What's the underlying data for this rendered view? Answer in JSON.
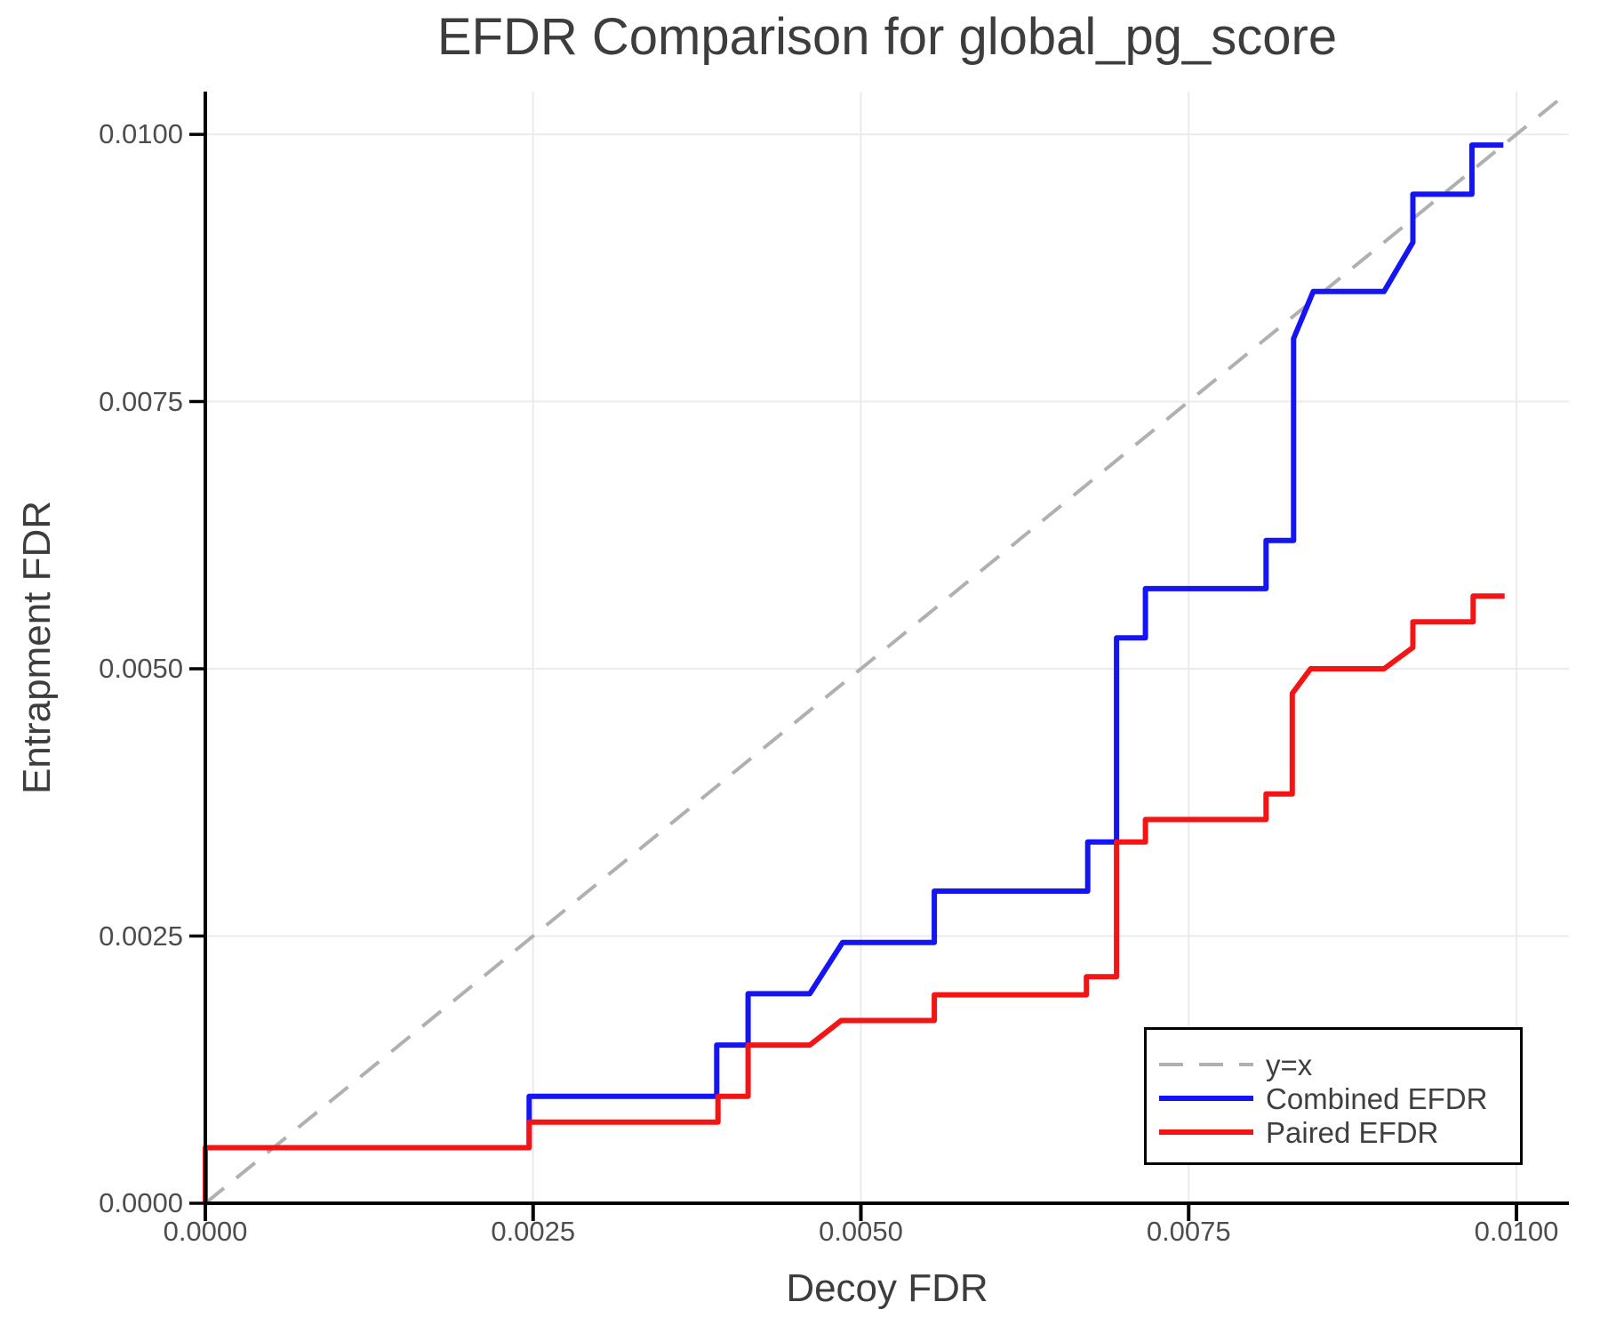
{
  "figure": {
    "title": "EFDR Comparison for global_pg_score",
    "x_axis_label": "Decoy FDR",
    "y_axis_label": "Entrapment FDR"
  },
  "chart_data": {
    "type": "line",
    "subtype": "step-comparison",
    "title": "EFDR Comparison for global_pg_score",
    "xlabel": "Decoy FDR",
    "ylabel": "Entrapment FDR",
    "xlim": [
      0,
      0.0104
    ],
    "ylim": [
      0,
      0.0104
    ],
    "grid": true,
    "grid_color": "#ebebeb",
    "axis_color": "#000000",
    "text_color": "#3d3d3d",
    "tick_label_color": "#4d4d4d",
    "x_ticks": {
      "values": [
        0,
        0.0025,
        0.005,
        0.0075,
        0.01
      ],
      "labels": [
        "0.0000",
        "0.0025",
        "0.0050",
        "0.0075",
        "0.0100"
      ]
    },
    "y_ticks": {
      "values": [
        0,
        0.0025,
        0.005,
        0.0075,
        0.01
      ],
      "labels": [
        "0.0000",
        "0.0025",
        "0.0050",
        "0.0075",
        "0.0100"
      ]
    },
    "legend": {
      "position": "lower right",
      "border_color": "#000000"
    },
    "series": [
      {
        "name": "y=x",
        "role": "reference-line",
        "style": "dashed",
        "color": "#b0b0b0",
        "width": 4,
        "points": [
          [
            0,
            0
          ],
          [
            0.0104,
            0.0104
          ]
        ]
      },
      {
        "name": "Combined EFDR",
        "role": "data",
        "style": "solid",
        "color": "#1414f5",
        "width": 6,
        "points": [
          [
            0.0,
            0.0
          ],
          [
            0.0,
            0.00052
          ],
          [
            0.00247,
            0.00052
          ],
          [
            0.00247,
            0.001
          ],
          [
            0.0039,
            0.001
          ],
          [
            0.0039,
            0.00148
          ],
          [
            0.00414,
            0.00148
          ],
          [
            0.00414,
            0.00196
          ],
          [
            0.00461,
            0.00196
          ],
          [
            0.00486,
            0.00244
          ],
          [
            0.00556,
            0.00244
          ],
          [
            0.00556,
            0.00292
          ],
          [
            0.00673,
            0.00292
          ],
          [
            0.00673,
            0.00338
          ],
          [
            0.00695,
            0.00338
          ],
          [
            0.00695,
            0.00529
          ],
          [
            0.00717,
            0.00529
          ],
          [
            0.00717,
            0.00575
          ],
          [
            0.00809,
            0.00575
          ],
          [
            0.00809,
            0.0062
          ],
          [
            0.0083,
            0.0062
          ],
          [
            0.0083,
            0.00809
          ],
          [
            0.00845,
            0.00853
          ],
          [
            0.00899,
            0.00853
          ],
          [
            0.00921,
            0.00899
          ],
          [
            0.00921,
            0.00944
          ],
          [
            0.00966,
            0.00944
          ],
          [
            0.00966,
            0.0099
          ],
          [
            0.0099,
            0.0099
          ]
        ]
      },
      {
        "name": "Paired EFDR",
        "role": "data",
        "style": "solid",
        "color": "#f51414",
        "width": 6,
        "points": [
          [
            0.0,
            0.0
          ],
          [
            0.0,
            0.00052
          ],
          [
            0.00247,
            0.00052
          ],
          [
            0.00247,
            0.00076
          ],
          [
            0.00391,
            0.00076
          ],
          [
            0.00391,
            0.001
          ],
          [
            0.00414,
            0.001
          ],
          [
            0.00414,
            0.00148
          ],
          [
            0.00461,
            0.00148
          ],
          [
            0.00485,
            0.00171
          ],
          [
            0.00556,
            0.00171
          ],
          [
            0.00556,
            0.00195
          ],
          [
            0.00672,
            0.00195
          ],
          [
            0.00672,
            0.00212
          ],
          [
            0.00695,
            0.00212
          ],
          [
            0.00695,
            0.00338
          ],
          [
            0.00717,
            0.00338
          ],
          [
            0.00717,
            0.00359
          ],
          [
            0.00809,
            0.00359
          ],
          [
            0.00809,
            0.00383
          ],
          [
            0.00829,
            0.00383
          ],
          [
            0.00829,
            0.00477
          ],
          [
            0.00843,
            0.005
          ],
          [
            0.00899,
            0.005
          ],
          [
            0.00921,
            0.0052
          ],
          [
            0.00921,
            0.00544
          ],
          [
            0.00967,
            0.00544
          ],
          [
            0.00967,
            0.00568
          ],
          [
            0.00991,
            0.00568
          ]
        ]
      }
    ]
  }
}
